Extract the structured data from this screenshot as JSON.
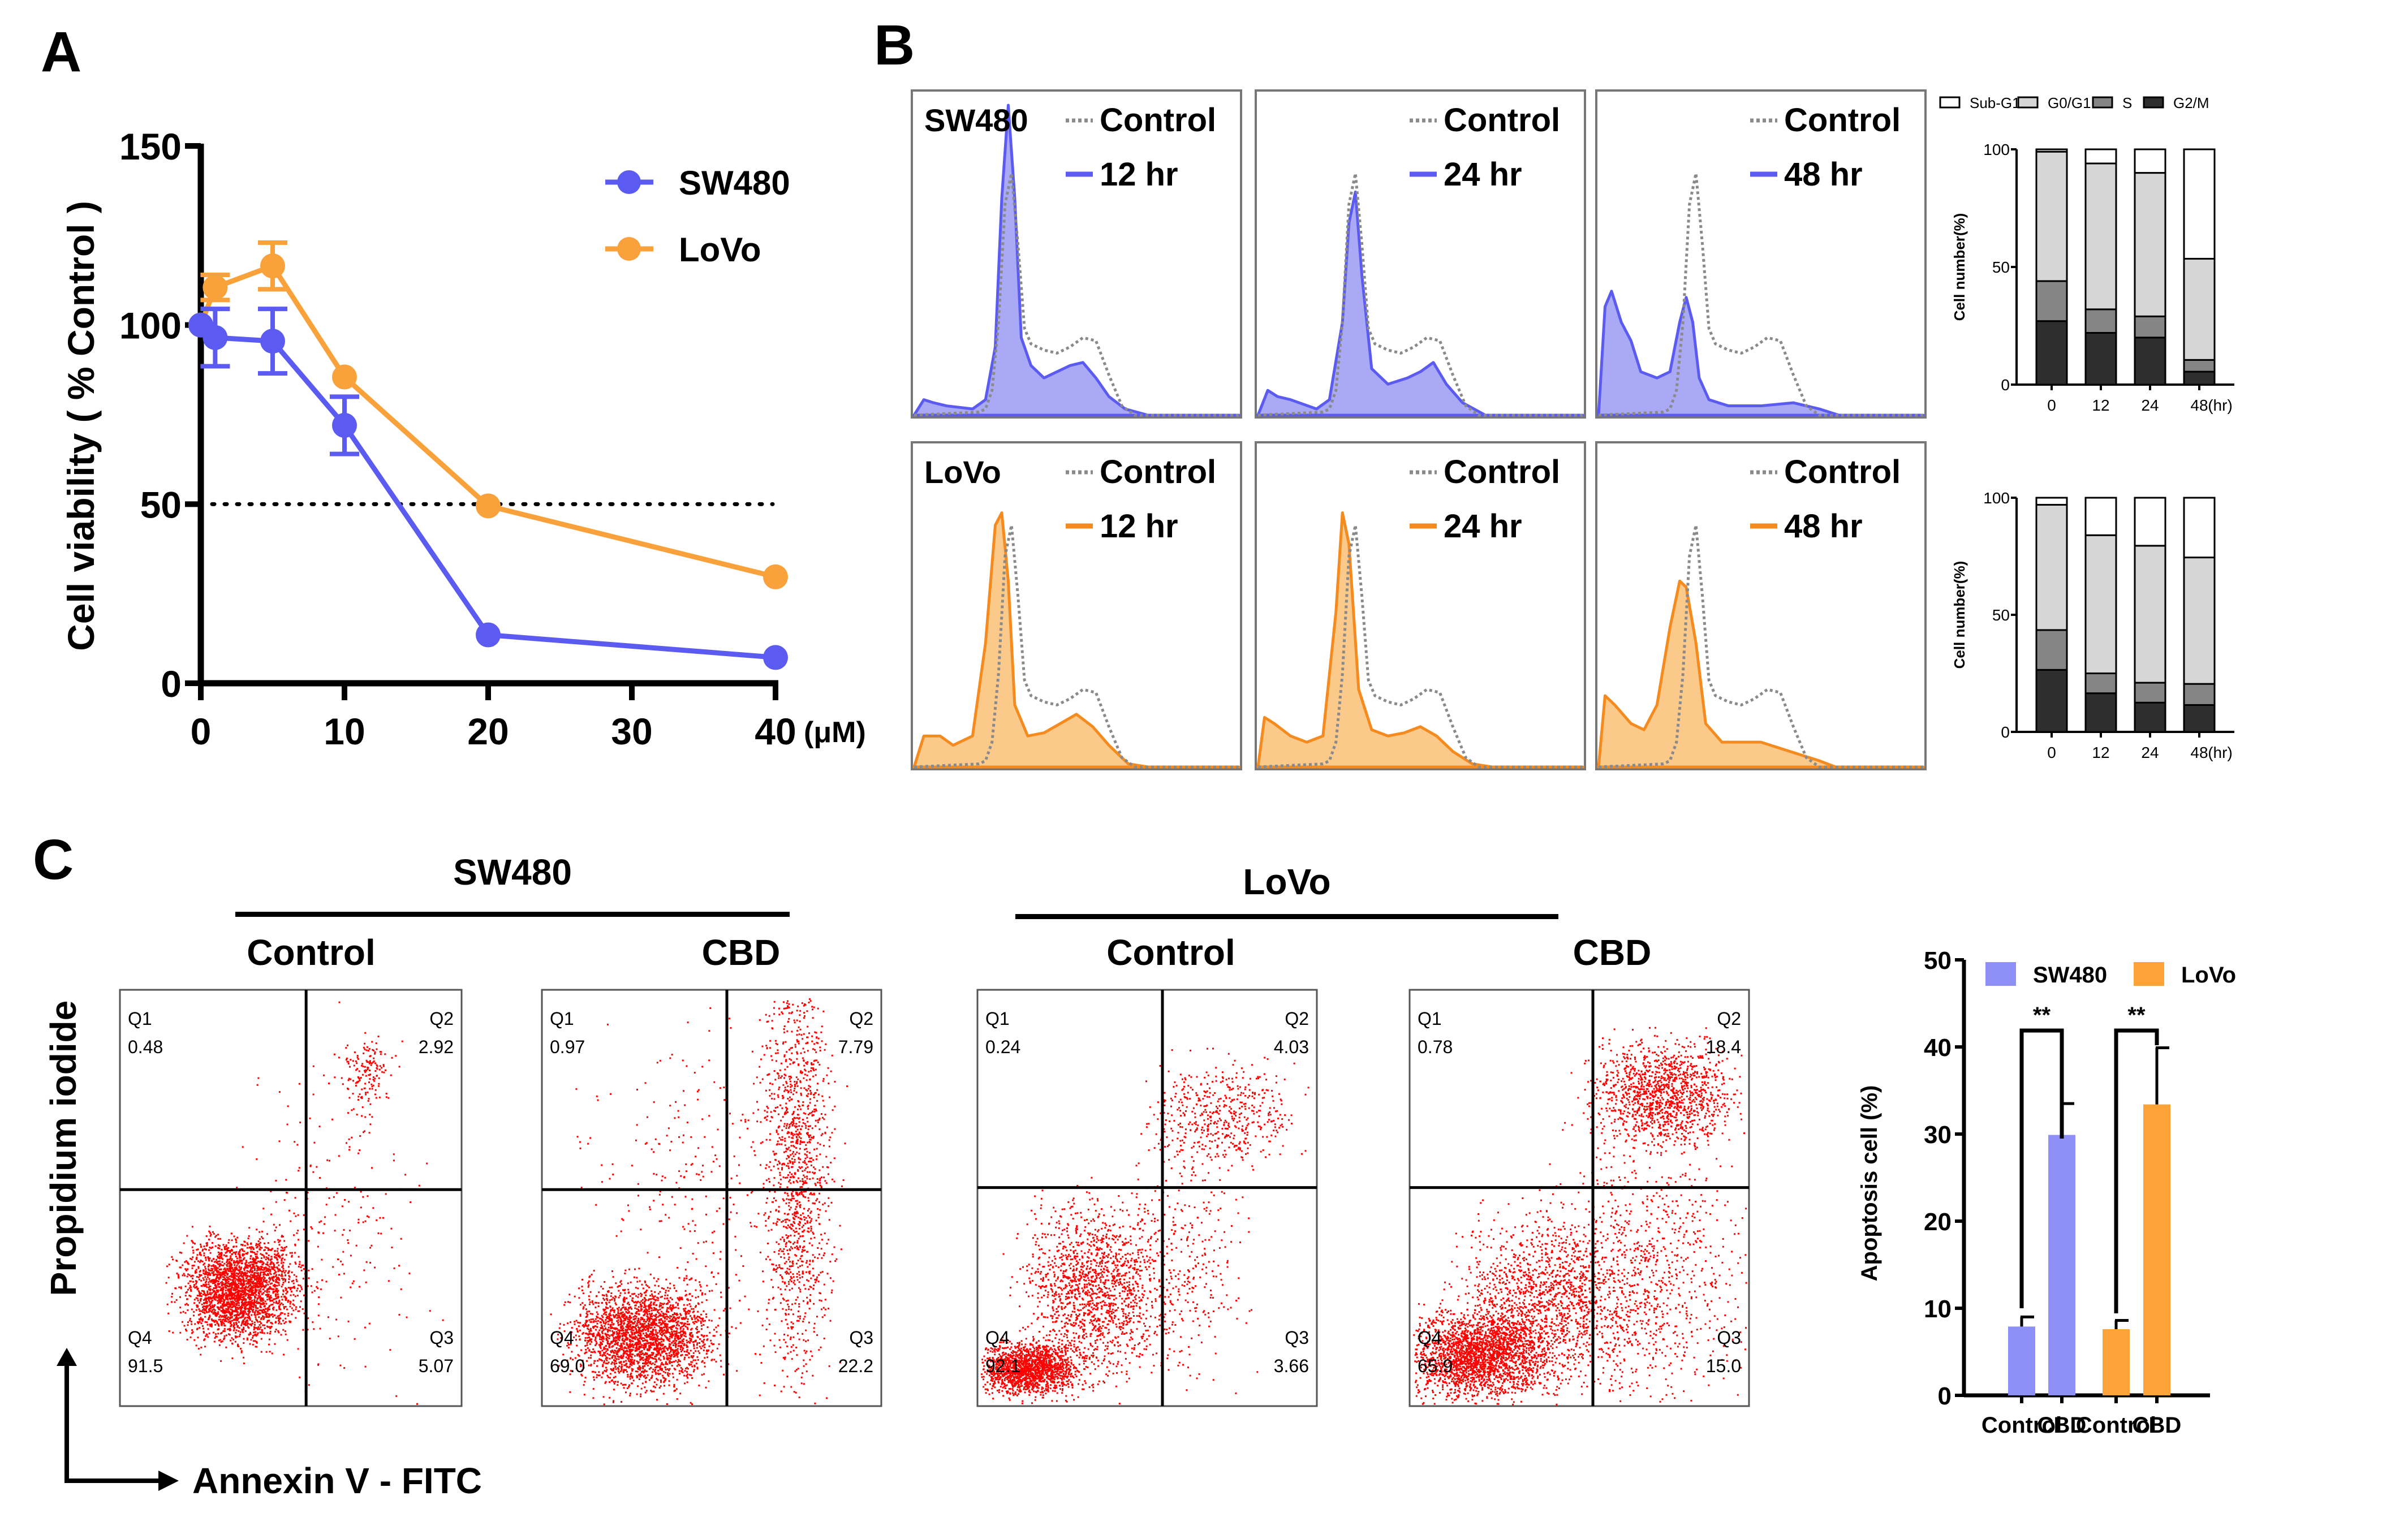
{
  "panels": {
    "A": {
      "letter": "A"
    },
    "B": {
      "letter": "B"
    },
    "C": {
      "letter": "C"
    }
  },
  "colors": {
    "sw480": "#5b5bf2",
    "sw480_fill": "#a9a9f6",
    "lovo": "#f9a23b",
    "lovo_line": "#f58a1f",
    "lovo_fill": "#fbc98a",
    "control_dotted": "#8a8a8a",
    "dot_red": "#ff0000",
    "apoptosis_sw480": "#8f8ff8",
    "apoptosis_lovo": "#fba338",
    "subG1": "#ffffff",
    "G0G1": "#d6d6d6",
    "S": "#858585",
    "G2M": "#2e2e2e"
  },
  "chart_data": [
    {
      "id": "viability",
      "type": "line",
      "title": "",
      "xlabel": "(μM)",
      "ylabel": "Cell viability ( % Control )",
      "xlim": [
        0,
        40
      ],
      "ylim": [
        0,
        150
      ],
      "xticks": [
        0,
        10,
        20,
        30,
        40
      ],
      "yticks": [
        0,
        50,
        100,
        150
      ],
      "reference_line": {
        "y": 50,
        "style": "dotted"
      },
      "legend": {
        "position": "top-right",
        "entries": [
          "SW480",
          "LoVo"
        ]
      },
      "series": [
        {
          "name": "SW480",
          "x": [
            0,
            1,
            5,
            10,
            20,
            40
          ],
          "y": [
            100,
            96.5,
            95.5,
            72,
            13.5,
            7.2
          ],
          "err": [
            0,
            8,
            9,
            8,
            0,
            0
          ]
        },
        {
          "name": "LoVo",
          "x": [
            0,
            1,
            5,
            10,
            20,
            40
          ],
          "y": [
            100,
            110.5,
            116.5,
            85.5,
            49.5,
            29.7
          ],
          "err": [
            0,
            3.5,
            6.5,
            0,
            0,
            0
          ]
        }
      ]
    },
    {
      "id": "cell-cycle-histograms",
      "type": "area",
      "xlabel": "",
      "ylabel": "",
      "rows": [
        {
          "cell_line": "SW480",
          "timepoints": [
            "12 hr",
            "24 hr",
            "48 hr"
          ],
          "control_label": "Control"
        },
        {
          "cell_line": "LoVo",
          "timepoints": [
            "12 hr",
            "24 hr",
            "48 hr"
          ],
          "control_label": "Control"
        }
      ],
      "profiles": {
        "control": [
          [
            0,
            0
          ],
          [
            0.2,
            0.01
          ],
          [
            0.22,
            0.02
          ],
          [
            0.24,
            0.08
          ],
          [
            0.26,
            0.3
          ],
          [
            0.28,
            0.68
          ],
          [
            0.3,
            0.78
          ],
          [
            0.32,
            0.55
          ],
          [
            0.34,
            0.28
          ],
          [
            0.36,
            0.23
          ],
          [
            0.4,
            0.21
          ],
          [
            0.44,
            0.2
          ],
          [
            0.48,
            0.22
          ],
          [
            0.52,
            0.25
          ],
          [
            0.56,
            0.24
          ],
          [
            0.6,
            0.13
          ],
          [
            0.64,
            0.03
          ],
          [
            0.68,
            0
          ],
          [
            1,
            0
          ]
        ],
        "SW480": [
          [
            [
              0,
              0
            ],
            [
              0.03,
              0.05
            ],
            [
              0.06,
              0.04
            ],
            [
              0.1,
              0.03
            ],
            [
              0.18,
              0.02
            ],
            [
              0.22,
              0.05
            ],
            [
              0.25,
              0.22
            ],
            [
              0.27,
              0.7
            ],
            [
              0.29,
              1.0
            ],
            [
              0.31,
              0.7
            ],
            [
              0.33,
              0.25
            ],
            [
              0.36,
              0.16
            ],
            [
              0.4,
              0.12
            ],
            [
              0.44,
              0.14
            ],
            [
              0.48,
              0.16
            ],
            [
              0.52,
              0.17
            ],
            [
              0.56,
              0.12
            ],
            [
              0.6,
              0.06
            ],
            [
              0.65,
              0.02
            ],
            [
              0.72,
              0
            ],
            [
              1,
              0
            ]
          ],
          [
            [
              0,
              0
            ],
            [
              0.03,
              0.08
            ],
            [
              0.06,
              0.06
            ],
            [
              0.1,
              0.05
            ],
            [
              0.18,
              0.02
            ],
            [
              0.22,
              0.05
            ],
            [
              0.26,
              0.3
            ],
            [
              0.28,
              0.62
            ],
            [
              0.3,
              0.72
            ],
            [
              0.32,
              0.45
            ],
            [
              0.35,
              0.15
            ],
            [
              0.4,
              0.1
            ],
            [
              0.46,
              0.12
            ],
            [
              0.5,
              0.14
            ],
            [
              0.54,
              0.17
            ],
            [
              0.58,
              0.1
            ],
            [
              0.63,
              0.04
            ],
            [
              0.7,
              0
            ],
            [
              1,
              0
            ]
          ],
          [
            [
              0,
              0
            ],
            [
              0.02,
              0.35
            ],
            [
              0.04,
              0.4
            ],
            [
              0.07,
              0.3
            ],
            [
              0.1,
              0.24
            ],
            [
              0.13,
              0.14
            ],
            [
              0.18,
              0.12
            ],
            [
              0.22,
              0.14
            ],
            [
              0.25,
              0.3
            ],
            [
              0.27,
              0.38
            ],
            [
              0.29,
              0.3
            ],
            [
              0.31,
              0.12
            ],
            [
              0.34,
              0.05
            ],
            [
              0.4,
              0.03
            ],
            [
              0.5,
              0.03
            ],
            [
              0.6,
              0.04
            ],
            [
              0.68,
              0.02
            ],
            [
              0.74,
              0
            ],
            [
              1,
              0
            ]
          ]
        ],
        "LoVo": [
          [
            [
              0,
              0
            ],
            [
              0.03,
              0.1
            ],
            [
              0.08,
              0.1
            ],
            [
              0.12,
              0.07
            ],
            [
              0.18,
              0.1
            ],
            [
              0.22,
              0.4
            ],
            [
              0.25,
              0.78
            ],
            [
              0.27,
              0.82
            ],
            [
              0.29,
              0.6
            ],
            [
              0.31,
              0.2
            ],
            [
              0.35,
              0.1
            ],
            [
              0.4,
              0.11
            ],
            [
              0.45,
              0.14
            ],
            [
              0.5,
              0.17
            ],
            [
              0.55,
              0.13
            ],
            [
              0.6,
              0.07
            ],
            [
              0.66,
              0.01
            ],
            [
              0.72,
              0
            ],
            [
              1,
              0
            ]
          ],
          [
            [
              0,
              0
            ],
            [
              0.02,
              0.16
            ],
            [
              0.05,
              0.14
            ],
            [
              0.1,
              0.1
            ],
            [
              0.15,
              0.08
            ],
            [
              0.2,
              0.1
            ],
            [
              0.24,
              0.5
            ],
            [
              0.26,
              0.82
            ],
            [
              0.28,
              0.72
            ],
            [
              0.31,
              0.25
            ],
            [
              0.35,
              0.12
            ],
            [
              0.4,
              0.1
            ],
            [
              0.45,
              0.11
            ],
            [
              0.5,
              0.13
            ],
            [
              0.55,
              0.1
            ],
            [
              0.6,
              0.05
            ],
            [
              0.66,
              0.01
            ],
            [
              0.72,
              0
            ],
            [
              1,
              0
            ]
          ],
          [
            [
              0,
              0
            ],
            [
              0.02,
              0.23
            ],
            [
              0.05,
              0.2
            ],
            [
              0.1,
              0.14
            ],
            [
              0.14,
              0.12
            ],
            [
              0.18,
              0.2
            ],
            [
              0.22,
              0.45
            ],
            [
              0.25,
              0.6
            ],
            [
              0.27,
              0.58
            ],
            [
              0.3,
              0.4
            ],
            [
              0.33,
              0.14
            ],
            [
              0.38,
              0.08
            ],
            [
              0.44,
              0.08
            ],
            [
              0.5,
              0.08
            ],
            [
              0.56,
              0.06
            ],
            [
              0.62,
              0.04
            ],
            [
              0.68,
              0.02
            ],
            [
              0.73,
              0
            ],
            [
              1,
              0
            ]
          ]
        ]
      }
    },
    {
      "id": "cell-cycle-sw480",
      "type": "bar",
      "stacked": true,
      "categories": [
        "0",
        "12",
        "24",
        "48"
      ],
      "xlabel": "(hr)",
      "ylabel": "Cell number(%)",
      "ylim": [
        0,
        100
      ],
      "yticks": [
        0,
        50,
        100
      ],
      "legend": {
        "position": "top",
        "entries": [
          "Sub-G1",
          "G0/G1",
          "S",
          "G2/M"
        ]
      },
      "series": [
        {
          "name": "G2/M",
          "values": [
            27,
            22,
            20,
            5.5
          ]
        },
        {
          "name": "S",
          "values": [
            17,
            10,
            9,
            5
          ]
        },
        {
          "name": "G0/G1",
          "values": [
            55,
            62,
            61,
            43
          ]
        },
        {
          "name": "Sub-G1",
          "values": [
            1,
            6,
            10,
            46.5
          ]
        }
      ]
    },
    {
      "id": "cell-cycle-lovo",
      "type": "bar",
      "stacked": true,
      "categories": [
        "0",
        "12",
        "24",
        "48"
      ],
      "xlabel": "(hr)",
      "ylabel": "Cell number(%)",
      "ylim": [
        0,
        100
      ],
      "yticks": [
        0,
        50,
        100
      ],
      "series": [
        {
          "name": "G2/M",
          "values": [
            26.5,
            16.5,
            12.5,
            11.5
          ]
        },
        {
          "name": "S",
          "values": [
            17,
            8.5,
            8.5,
            9
          ]
        },
        {
          "name": "G0/G1",
          "values": [
            53.5,
            59,
            58.5,
            54
          ]
        },
        {
          "name": "Sub-G1",
          "values": [
            3,
            16,
            20.5,
            25.5
          ]
        }
      ]
    },
    {
      "id": "annexin-pi-scatter",
      "type": "scatter",
      "xlabel": "Annexin V - FITC",
      "ylabel": "Propidium iodide",
      "groups": [
        {
          "cell_line": "SW480",
          "condition": "Control",
          "Q1": "0.48",
          "Q2": "2.92",
          "Q3": "5.07",
          "Q4": "91.5"
        },
        {
          "cell_line": "SW480",
          "condition": "CBD",
          "Q1": "0.97",
          "Q2": "7.79",
          "Q3": "22.2",
          "Q4": "69.0"
        },
        {
          "cell_line": "LoVo",
          "condition": "Control",
          "Q1": "0.24",
          "Q2": "4.03",
          "Q3": "3.66",
          "Q4": "92.1"
        },
        {
          "cell_line": "LoVo",
          "condition": "CBD",
          "Q1": "0.78",
          "Q2": "18.4",
          "Q3": "15.0",
          "Q4": "65.9"
        }
      ]
    },
    {
      "id": "apoptosis",
      "type": "bar",
      "categories": [
        "Control",
        "CBD",
        "Control",
        "CBD"
      ],
      "xlabel": "",
      "ylabel": "Apoptosis cell (%)",
      "ylim": [
        0,
        50
      ],
      "yticks": [
        0,
        10,
        20,
        30,
        40,
        50
      ],
      "legend": {
        "position": "top",
        "entries": [
          "SW480",
          "LoVo"
        ]
      },
      "series": [
        {
          "name": "SW480",
          "categories": [
            "Control",
            "CBD"
          ],
          "values": [
            7.9,
            29.9
          ],
          "err": [
            1.1,
            3.6
          ]
        },
        {
          "name": "LoVo",
          "categories": [
            "Control",
            "CBD"
          ],
          "values": [
            7.6,
            33.4
          ],
          "err": [
            1.0,
            6.5
          ]
        }
      ],
      "annotations": [
        {
          "between": [
            "SW480 Control",
            "SW480 CBD"
          ],
          "text": "**"
        },
        {
          "between": [
            "LoVo Control",
            "LoVo CBD"
          ],
          "text": "**"
        }
      ]
    }
  ],
  "panelC": {
    "headers": {
      "sw480": "SW480",
      "lovo": "LoVo",
      "control": "Control",
      "cbd": "CBD"
    },
    "quadrant_labels": [
      "Q1",
      "Q2",
      "Q3",
      "Q4"
    ]
  }
}
